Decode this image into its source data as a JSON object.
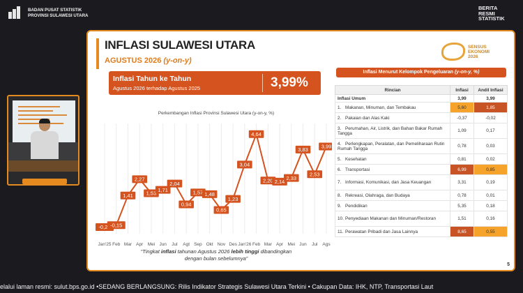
{
  "header": {
    "org_line1": "BADAN PUSAT STATISTIK",
    "org_line2": "PROVINSI SULAWESI UTARA",
    "brand_line1": "BERITA",
    "brand_line2": "RESMI",
    "brand_line3": "STATISTIK"
  },
  "slide": {
    "title": "INFLASI SULAWESI UTARA",
    "subtitle_main": "AGUSTUS 2026 ",
    "subtitle_note": "(y-on-y)",
    "sensus_line1": "SENSUS",
    "sensus_line2": "EKONOMI",
    "sensus_line3": "2026",
    "highlight_title": "Inflasi Tahun ke Tahun",
    "highlight_sub": "Agustus 2026 terhadap Agustus 2025",
    "highlight_value": "3,99%",
    "chart_title": "Perkembangan Inflasi Provinsi Sulawesi Utara (y-on-y, %)",
    "quote_pre": "“Tingkat ",
    "quote_b1": "inflasi",
    "quote_mid": " tahunan Agustus 2026 ",
    "quote_b2": "lebih tinggi",
    "quote_post": " dibandingkan",
    "quote_line2": "dengan bulan sebelumnya”",
    "page_number": "5",
    "table_header_main": "Inflasi Menurut Kelompok Pengeluaran ",
    "table_header_note": "(y-on-y, %)"
  },
  "table": {
    "col_rincian": "Rincian",
    "col_inflasi": "Inflasi",
    "col_andil": "Andil Inflasi",
    "umum_label": "Inflasi Umum",
    "umum_inflasi": "3,99",
    "umum_andil": "3,99",
    "rows": [
      {
        "no": "1.",
        "label": "Makanan, Minuman, dan Tembakau",
        "inflasi": "5,60",
        "andil": "1,85"
      },
      {
        "no": "2.",
        "label": "Pakaian dan Alas Kaki",
        "inflasi": "-0,37",
        "andil": "-0,02"
      },
      {
        "no": "3.",
        "label": "Perumahan, Air, Listrik, dan Bahan Bakar Rumah Tangga",
        "inflasi": "1,09",
        "andil": "0,17"
      },
      {
        "no": "4.",
        "label": "Perlengkapan, Peralatan, dan Pemeliharaan Rutin Rumah Tangga",
        "inflasi": "0,78",
        "andil": "0,03"
      },
      {
        "no": "5.",
        "label": "Kesehatan",
        "inflasi": "0,81",
        "andil": "0,02"
      },
      {
        "no": "6.",
        "label": "Transportasi",
        "inflasi": "6,99",
        "andil": "0,85"
      },
      {
        "no": "7.",
        "label": "Informasi, Komunikasi, dan Jasa Keuangan",
        "inflasi": "3,31",
        "andil": "0,19"
      },
      {
        "no": "8.",
        "label": "Rekreasi, Olahraga, dan Budaya",
        "inflasi": "0,78",
        "andil": "0,01"
      },
      {
        "no": "9.",
        "label": "Pendidikan",
        "inflasi": "5,35",
        "andil": "0,18"
      },
      {
        "no": "10.",
        "label": "Penyediaan Makanan dan Minuman/Restoran",
        "inflasi": "1,51",
        "andil": "0,16"
      },
      {
        "no": "11.",
        "label": "Perawatan Pribadi dan Jasa Lainnya",
        "inflasi": "8,65",
        "andil": "0,55"
      }
    ]
  },
  "chart_data": {
    "type": "line",
    "title": "Perkembangan Inflasi Provinsi Sulawesi Utara (y-on-y, %)",
    "categories": [
      "Jan'25",
      "Feb",
      "Mar",
      "Apr",
      "Mei",
      "Jun",
      "Jul",
      "Agt",
      "Sep",
      "Okt",
      "Nov",
      "Des",
      "Jan'26",
      "Feb",
      "Mar",
      "Apr",
      "Mei",
      "Jun",
      "Jul",
      "Ags"
    ],
    "values": [
      -0.25,
      -0.15,
      1.41,
      2.27,
      1.53,
      1.71,
      2.04,
      0.94,
      1.57,
      1.48,
      0.65,
      1.23,
      3.04,
      4.64,
      2.2,
      2.14,
      2.33,
      3.83,
      2.53,
      3.99
    ],
    "value_labels": [
      "-0,25",
      "-0,15",
      "1,41",
      "2,27",
      "1,53",
      "1,71",
      "2,04",
      "0,94",
      "1,57",
      "1,48",
      "0,65",
      "1,23",
      "3,04",
      "4,64",
      "2,20",
      "2,14",
      "2,33",
      "3,83",
      "2,53",
      "3,99"
    ],
    "line_color": "#d4531f",
    "label_color": "#d4531f",
    "grid": "vertical"
  },
  "ticker": {
    "text": "elalui laman resmi: sulut.bps.go.id •SEDANG BERLANGSUNG: Rilis Indikator Strategis Sulawesi Utara Terkini • Cakupan Data: IHK, NTP,  Transportasi Laut"
  }
}
